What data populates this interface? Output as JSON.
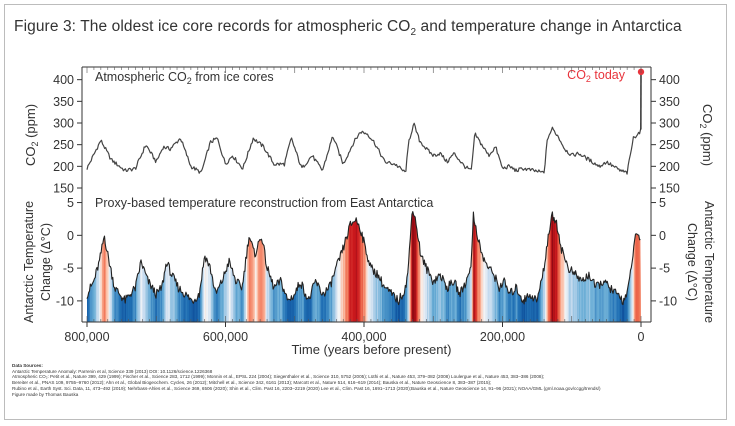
{
  "title_prefix": "Figure 3:  The oldest ice core records for atmospheric CO",
  "title_sub": "2",
  "title_suffix": " and temperature change in Antarctica",
  "x_axis_label": "Time (years before present)",
  "sources_header": "Data Sources:",
  "sources_lines": [
    "Antarctic Temperature Anomaly: Parrenin et al, Science 339 (2013) DOI: 10.1126/science.1226368",
    "Atmospheric CO₂: Petit et al., Nature 399, 429 (1999); Fischer et al., Science 283, 1712 (1999); Monnin et al., EPSL 224 (2004); Siegenthaler et al., Science 310, 5752 (2005); Lüthi et al., Nature 453, 379–382 (2008) Loulergue et al., Nature 453, 383–386 (2008);",
    "Bereiter et al., PNAS 109, 9755–9760 (2012); Ahn et al., Global Biogeochem. Cycles, 26 (2012); Mitchell et al., Science 342, 6161 (2013); Marcott et al., Nature 514, 616–619 (2014); Bauska et al., Nature Geoscience 8, 383–387 (2015);",
    "Rubino et al., Earth Syst. Sci. Data, 11, 473–492 (2019); Nehrbass-Ahles et al., Science 369, 6506 (2020); Shin et al., Clim. Past 16, 2203–2219 (2020) Lee et al., Clim. Past 16, 1691–1713 (2020);Bauska et al., Nature Geoscience 14, 91–96 (2021); NOAA/GML (gml.noaa.gov/ccgg/trends/)"
  ],
  "credit": "Figure made by Thomas Bauska",
  "chart_data": [
    {
      "type": "line",
      "title_prefix": "Atmospheric CO",
      "title_sub": "2",
      "title_suffix": " from ice cores",
      "ylabel_left_prefix": "CO",
      "ylabel_left_sub": "2",
      "ylabel_left_suffix": " (ppm)",
      "ylabel_right_prefix": "CO",
      "ylabel_right_sub": "2",
      "ylabel_right_suffix": " (ppm)",
      "ylim": [
        150,
        420
      ],
      "yticks": [
        150,
        200,
        250,
        300,
        350,
        400
      ],
      "xlim": [
        800000,
        0
      ],
      "annotation_prefix": "CO",
      "annotation_sub": "2",
      "annotation_suffix": " today",
      "today_value": 418,
      "accent_color": "#e8343c",
      "x": [
        800000,
        780000,
        765000,
        745000,
        730000,
        715000,
        700000,
        690000,
        680000,
        665000,
        650000,
        635000,
        622000,
        612000,
        600000,
        590000,
        575000,
        560000,
        545000,
        530000,
        515000,
        505000,
        490000,
        475000,
        460000,
        445000,
        430000,
        415000,
        405000,
        395000,
        385000,
        370000,
        355000,
        340000,
        335000,
        328000,
        320000,
        310000,
        300000,
        290000,
        280000,
        270000,
        255000,
        245000,
        240000,
        232000,
        220000,
        210000,
        200000,
        190000,
        180000,
        170000,
        155000,
        140000,
        135000,
        128000,
        120000,
        110000,
        100000,
        90000,
        80000,
        70000,
        60000,
        50000,
        40000,
        30000,
        20000,
        15000,
        11000,
        5000,
        1000,
        200,
        0
      ],
      "values": [
        195,
        260,
        215,
        190,
        195,
        250,
        210,
        245,
        240,
        265,
        200,
        185,
        255,
        265,
        205,
        225,
        195,
        265,
        245,
        205,
        205,
        265,
        195,
        225,
        190,
        270,
        205,
        255,
        280,
        275,
        255,
        210,
        205,
        185,
        260,
        298,
        260,
        240,
        225,
        230,
        210,
        230,
        200,
        190,
        275,
        255,
        225,
        245,
        195,
        200,
        190,
        195,
        190,
        185,
        265,
        287,
        270,
        240,
        225,
        230,
        220,
        210,
        200,
        210,
        200,
        190,
        185,
        230,
        265,
        275,
        280,
        285,
        418
      ]
    },
    {
      "type": "area",
      "title": "Proxy-based temperature reconstruction from East Antarctica",
      "ylabel_left": "Antarctic Temperature Change (Δ°C)",
      "ylabel_right": "Antarctic Temperature Change (Δ°C)",
      "ylim": [
        -12,
        6
      ],
      "yticks": [
        -10,
        -5,
        0,
        5
      ],
      "xlim": [
        800000,
        0
      ],
      "xticks": [
        800000,
        600000,
        400000,
        200000,
        0
      ],
      "xtick_labels": [
        "800,000",
        "600,000",
        "400,000",
        "200,000",
        "0"
      ],
      "x": [
        800000,
        790000,
        782000,
        775000,
        770000,
        760000,
        745000,
        738000,
        730000,
        722000,
        712000,
        700000,
        692000,
        685000,
        678000,
        668000,
        658000,
        648000,
        638000,
        630000,
        622000,
        614000,
        605000,
        595000,
        585000,
        576000,
        566000,
        558000,
        548000,
        540000,
        530000,
        520000,
        510000,
        500000,
        492000,
        480000,
        470000,
        460000,
        450000,
        440000,
        430000,
        420000,
        412000,
        405000,
        398000,
        390000,
        380000,
        370000,
        360000,
        350000,
        340000,
        336000,
        330000,
        325000,
        318000,
        310000,
        300000,
        290000,
        280000,
        270000,
        262000,
        252000,
        245000,
        242000,
        238000,
        230000,
        220000,
        212000,
        205000,
        198000,
        190000,
        180000,
        170000,
        160000,
        150000,
        140000,
        134000,
        128000,
        122000,
        115000,
        105000,
        95000,
        85000,
        75000,
        65000,
        55000,
        45000,
        35000,
        25000,
        18000,
        14000,
        10000,
        6000,
        2000,
        0
      ],
      "values": [
        -9,
        -7,
        -4,
        0,
        -3,
        -8,
        -10,
        -9,
        -8,
        -4,
        -7,
        -9,
        -8,
        -4,
        -6,
        -8,
        -9,
        -10,
        -9,
        -3,
        -5,
        -9,
        -7,
        -4,
        -7,
        -8,
        0,
        -3,
        0,
        -5,
        -8,
        -7,
        -10,
        -9,
        -7,
        -10,
        -7,
        -9,
        -8,
        -5,
        -2,
        1.5,
        2.5,
        1,
        -2,
        -5,
        -6,
        -8,
        -9,
        -10,
        -8,
        -5,
        4.5,
        2,
        -3,
        -5,
        -7,
        -6,
        -8,
        -7,
        -9,
        -7,
        -4,
        3,
        1,
        -3,
        -5,
        -6,
        -8,
        -7,
        -9,
        -8,
        -10,
        -9,
        -10,
        -5,
        0,
        3,
        2,
        -2,
        -5,
        -6,
        -7,
        -6,
        -8,
        -7,
        -8,
        -9,
        -10,
        -8,
        -5,
        -1,
        0,
        -0.5,
        0
      ]
    }
  ]
}
